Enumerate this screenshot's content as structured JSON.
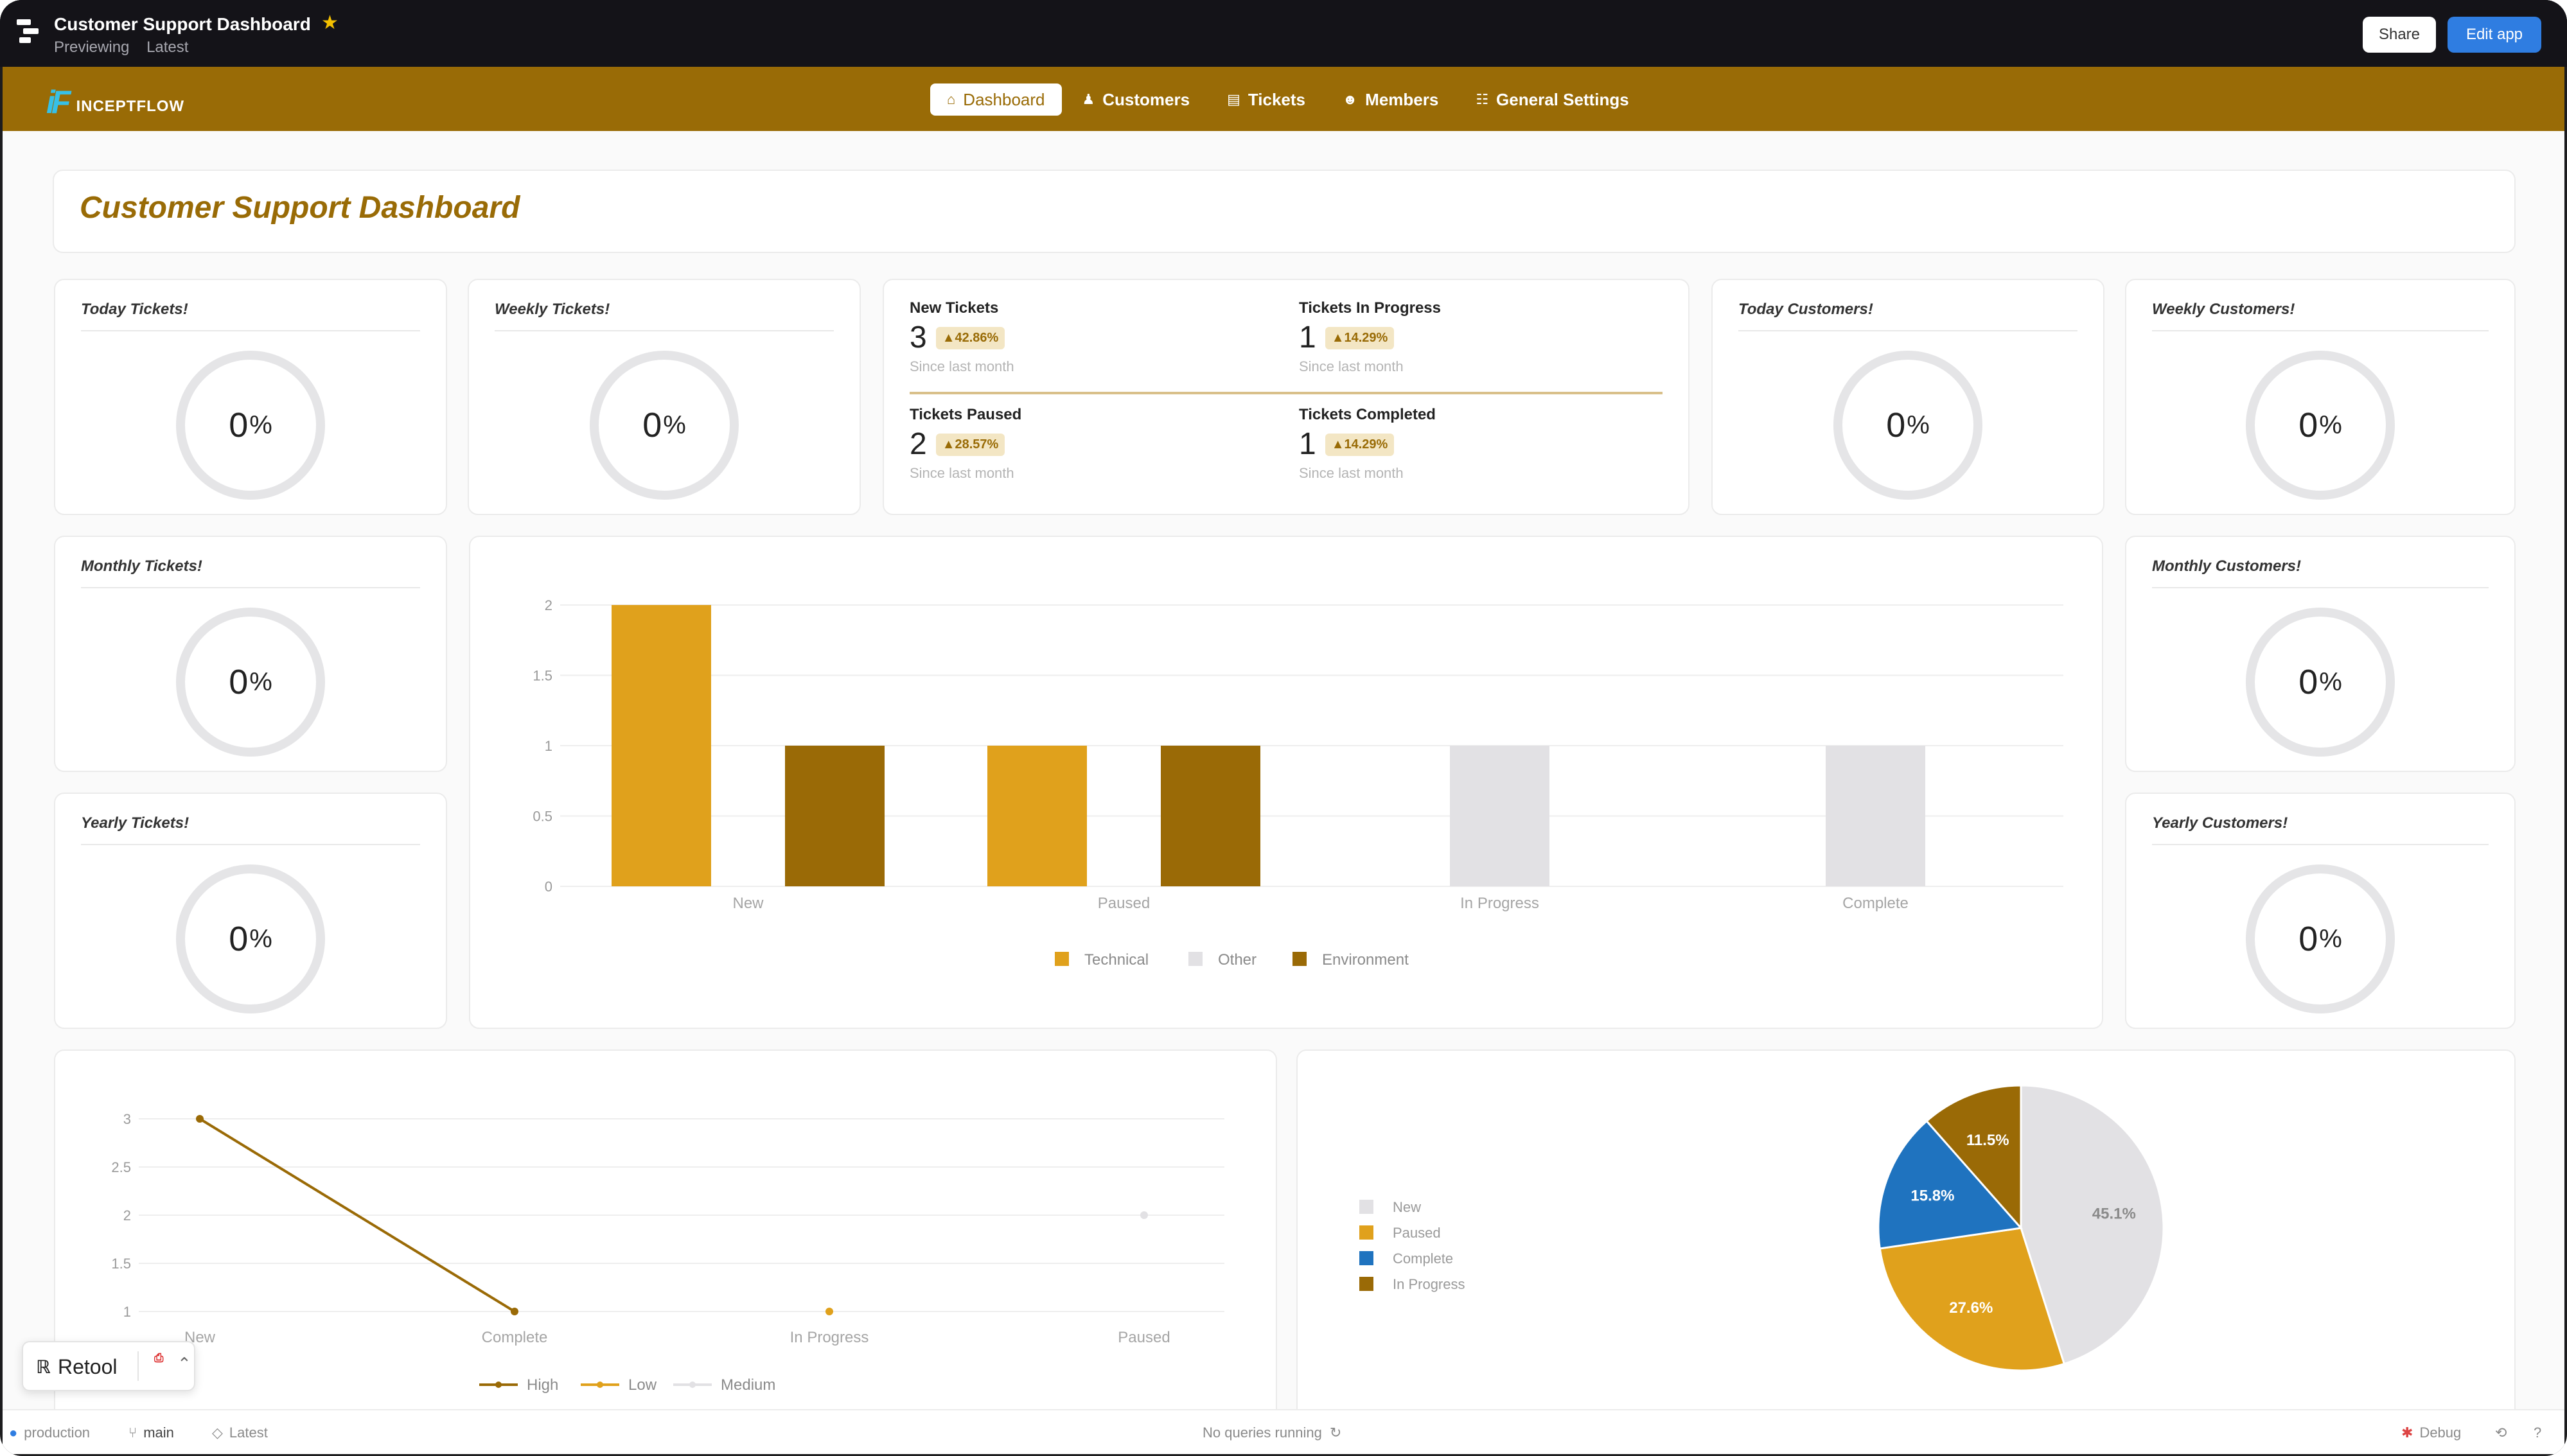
{
  "app": {
    "title": "Customer Support Dashboard",
    "mode": "Previewing",
    "version": "Latest",
    "share_label": "Share",
    "edit_label": "Edit app"
  },
  "brand": {
    "mark": "iF",
    "name": "INCEPTFLOW"
  },
  "nav": [
    {
      "label": "Dashboard",
      "icon": "home-icon",
      "active": true
    },
    {
      "label": "Customers",
      "icon": "person-icon"
    },
    {
      "label": "Tickets",
      "icon": "ticket-icon"
    },
    {
      "label": "Members",
      "icon": "members-icon"
    },
    {
      "label": "General Settings",
      "icon": "settings-icon"
    }
  ],
  "page": {
    "title": "Customer Support Dashboard"
  },
  "metrics": {
    "today_tickets": {
      "title": "Today Tickets!",
      "value": "0",
      "unit": "%"
    },
    "weekly_tickets": {
      "title": "Weekly Tickets!",
      "value": "0",
      "unit": "%"
    },
    "monthly_tickets": {
      "title": "Monthly Tickets!",
      "value": "0",
      "unit": "%"
    },
    "yearly_tickets": {
      "title": "Yearly Tickets!",
      "value": "0",
      "unit": "%"
    },
    "today_customers": {
      "title": "Today Customers!",
      "value": "0",
      "unit": "%"
    },
    "weekly_customers": {
      "title": "Weekly Customers!",
      "value": "0",
      "unit": "%"
    },
    "monthly_customers": {
      "title": "Monthly Customers!",
      "value": "0",
      "unit": "%"
    },
    "yearly_customers": {
      "title": "Yearly Customers!",
      "value": "0",
      "unit": "%"
    }
  },
  "stats": {
    "new": {
      "label": "New Tickets",
      "value": "3",
      "change": "▲42.86%",
      "note": "Since last month"
    },
    "in_progress": {
      "label": "Tickets In Progress",
      "value": "1",
      "change": "▲14.29%",
      "note": "Since last month"
    },
    "paused": {
      "label": "Tickets Paused",
      "value": "2",
      "change": "▲28.57%",
      "note": "Since last month"
    },
    "completed": {
      "label": "Tickets Completed",
      "value": "1",
      "change": "▲14.29%",
      "note": "Since last month"
    }
  },
  "colors": {
    "brand": "#996b06",
    "technical": "#e0a11c",
    "other": "#e2e1e4",
    "environment": "#9a6a06",
    "complete_blue": "#1f73bf",
    "accent_blue": "#2f7de1"
  },
  "chart_data": [
    {
      "type": "bar",
      "categories": [
        "New",
        "Paused",
        "In Progress",
        "Complete"
      ],
      "series": [
        {
          "name": "Technical",
          "values": [
            2,
            1,
            0,
            0
          ]
        },
        {
          "name": "Other",
          "values": [
            0,
            0,
            1,
            1
          ]
        },
        {
          "name": "Environment",
          "values": [
            1,
            1,
            0,
            0
          ]
        }
      ],
      "ylim": [
        0,
        2
      ],
      "yticks": [
        "0",
        "0.5",
        "1",
        "1.5",
        "2"
      ],
      "legend": "bottom",
      "grid": true
    },
    {
      "type": "line",
      "categories": [
        "New",
        "Complete",
        "In Progress",
        "Paused"
      ],
      "series": [
        {
          "name": "High",
          "values": [
            3,
            1,
            null,
            null
          ]
        },
        {
          "name": "Low",
          "values": [
            null,
            null,
            1,
            null
          ]
        },
        {
          "name": "Medium",
          "values": [
            null,
            null,
            null,
            2
          ]
        }
      ],
      "ylim": [
        1,
        3
      ],
      "yticks": [
        "1",
        "1.5",
        "2",
        "2.5",
        "3"
      ],
      "legend": "bottom",
      "grid": true
    },
    {
      "type": "pie",
      "labels": [
        "New",
        "Paused",
        "Complete",
        "In Progress"
      ],
      "values": [
        45.1,
        27.6,
        15.8,
        11.5
      ],
      "value_labels": [
        "45.1%",
        "27.6%",
        "15.8%",
        "11.5%"
      ],
      "legend": "left"
    }
  ],
  "footer": {
    "retool_label": "Retool",
    "env": "production",
    "branch": "main",
    "version": "Latest",
    "queries": "No queries running",
    "debug": "Debug"
  }
}
